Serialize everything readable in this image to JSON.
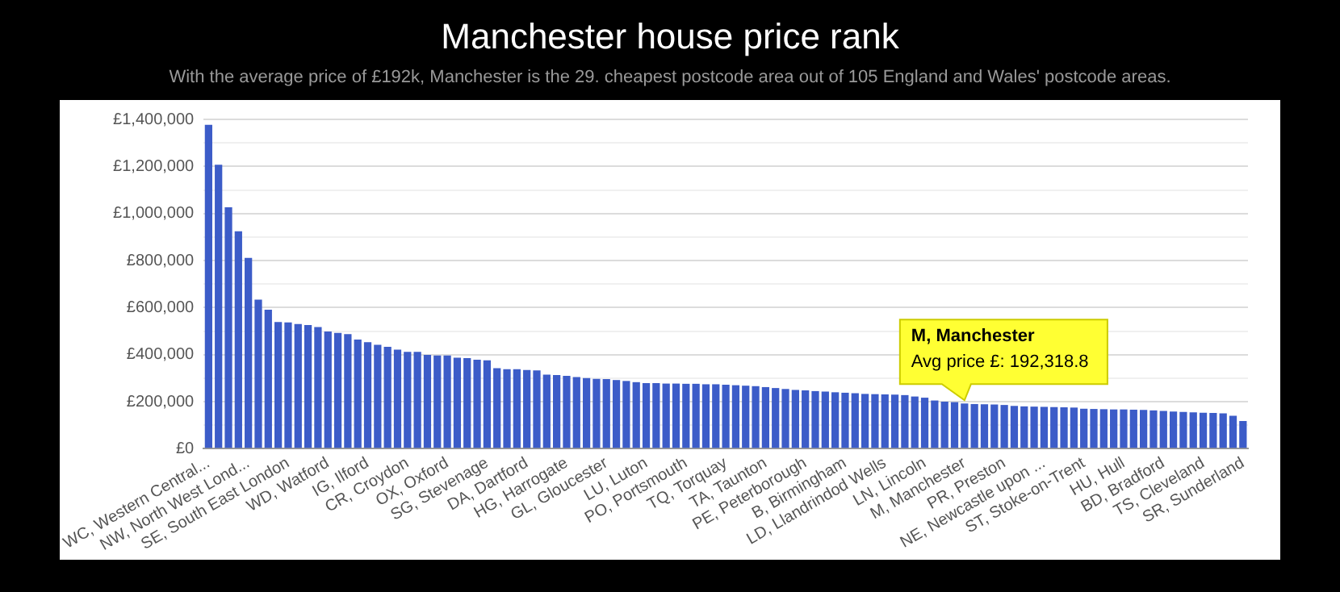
{
  "chart_data": {
    "type": "bar",
    "title": "Manchester house price rank",
    "subtitle": "With the average price of £192k, Manchester is the 29. cheapest postcode area out of 105 England and Wales' postcode areas.",
    "categories": [
      "WC, Western Central...",
      null,
      null,
      null,
      "NW, North West Lond...",
      null,
      null,
      null,
      "SE, South East London",
      null,
      null,
      null,
      "WD, Watford",
      null,
      null,
      null,
      "IG, Ilford",
      null,
      null,
      null,
      "CR, Croydon",
      null,
      null,
      null,
      "OX, Oxford",
      null,
      null,
      null,
      "SG, Stevenage",
      null,
      null,
      null,
      "DA, Dartford",
      null,
      null,
      null,
      "HG, Harrogate",
      null,
      null,
      null,
      "GL, Gloucester",
      null,
      null,
      null,
      "LU, Luton",
      null,
      null,
      null,
      "PO, Portsmouth",
      null,
      null,
      null,
      "TQ, Torquay",
      null,
      null,
      null,
      "TA, Taunton",
      null,
      null,
      null,
      "PE, Peterborough",
      null,
      null,
      null,
      "B, Birmingham",
      null,
      null,
      null,
      "LD, Llandrindod Wells",
      null,
      null,
      null,
      "LN, Lincoln",
      null,
      null,
      null,
      "M, Manchester",
      null,
      null,
      null,
      "PR, Preston",
      null,
      null,
      null,
      "NE, Newcastle upon ...",
      null,
      null,
      null,
      "ST, Stoke-on-Trent",
      null,
      null,
      null,
      "HU, Hull",
      null,
      null,
      null,
      "BD, Bradford",
      null,
      null,
      null,
      "TS, Cleveland",
      null,
      null,
      null,
      "SR, Sunderland"
    ],
    "values": [
      1377000,
      1207000,
      1026000,
      924000,
      811000,
      634000,
      591000,
      539000,
      537000,
      530000,
      526000,
      517000,
      498000,
      492000,
      487000,
      464000,
      453000,
      442000,
      433000,
      421000,
      412000,
      412000,
      399000,
      396000,
      396000,
      387000,
      385000,
      378000,
      376000,
      342000,
      338000,
      338000,
      335000,
      333000,
      315000,
      313000,
      310000,
      305000,
      300000,
      297000,
      296000,
      292000,
      288000,
      283000,
      279000,
      279000,
      277000,
      277000,
      276000,
      276000,
      274000,
      274000,
      272000,
      270000,
      268000,
      266000,
      262000,
      258000,
      254000,
      250000,
      248000,
      245000,
      243000,
      240000,
      238000,
      236000,
      233000,
      232000,
      231000,
      230000,
      228000,
      222000,
      217000,
      205000,
      200000,
      198000,
      192318.8,
      190000,
      189000,
      188000,
      186000,
      182000,
      180000,
      179000,
      178000,
      177000,
      176000,
      175000,
      170000,
      169000,
      168000,
      167000,
      167000,
      166000,
      165000,
      163000,
      161000,
      158000,
      156000,
      155000,
      153000,
      152000,
      150000,
      140000,
      118000
    ],
    "color": "#3c5cc8",
    "ylim": [
      0,
      1400000
    ],
    "yticks": [
      {
        "value": 0,
        "label": "£0"
      },
      {
        "value": 100000,
        "label": null
      },
      {
        "value": 200000,
        "label": "£200,000"
      },
      {
        "value": 300000,
        "label": null
      },
      {
        "value": 400000,
        "label": "£400,000"
      },
      {
        "value": 500000,
        "label": null
      },
      {
        "value": 600000,
        "label": "£600,000"
      },
      {
        "value": 700000,
        "label": null
      },
      {
        "value": 800000,
        "label": "£800,000"
      },
      {
        "value": 900000,
        "label": null
      },
      {
        "value": 1000000,
        "label": "£1,000,000"
      },
      {
        "value": 1100000,
        "label": null
      },
      {
        "value": 1200000,
        "label": "£1,200,000"
      },
      {
        "value": 1300000,
        "label": null
      },
      {
        "value": 1400000,
        "label": "£1,400,000"
      }
    ],
    "grid": "y",
    "annotations": [
      {
        "text": "M, Manchester\nAvg price £: 192,318.8",
        "x": "M, Manchester",
        "y": 192318.8
      }
    ]
  }
}
